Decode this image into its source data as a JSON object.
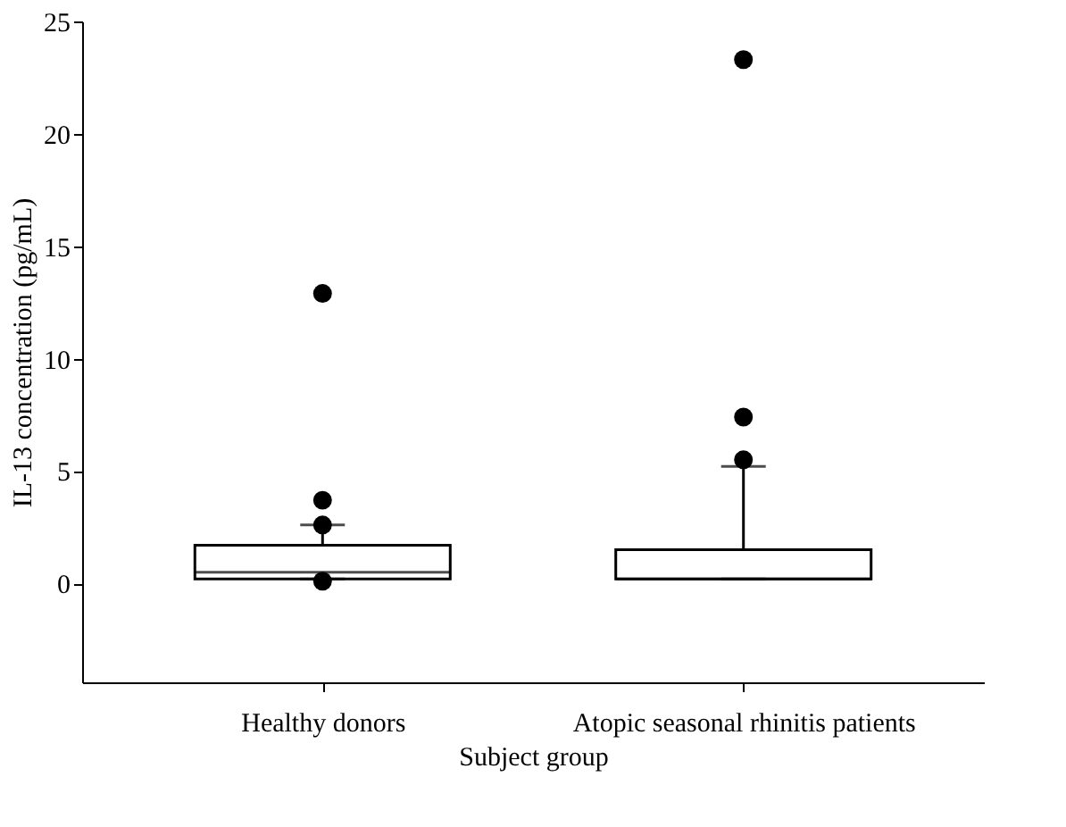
{
  "chart_data": {
    "type": "box",
    "xlabel": "Subject group",
    "ylabel": "IL-13 concentration (pg/mL)",
    "categories": [
      "Healthy donors",
      "Atopic seasonal rhinitis patients"
    ],
    "boxes": [
      {
        "low": 0.2,
        "q1": 0.2,
        "median": 0.5,
        "q3": 1.7,
        "high": 2.6,
        "outliers": [
          12.9,
          3.7,
          2.6,
          0.1
        ]
      },
      {
        "low": 0.2,
        "q1": 0.2,
        "median": 0.2,
        "q3": 1.5,
        "high": 5.2,
        "outliers": [
          23.3,
          7.4,
          5.5
        ]
      }
    ],
    "ylim": [
      -4.4,
      25
    ],
    "yticks": [
      0,
      5,
      10,
      15,
      20,
      25
    ],
    "grid": false,
    "color": "#ffffff",
    "marker": "circle"
  }
}
